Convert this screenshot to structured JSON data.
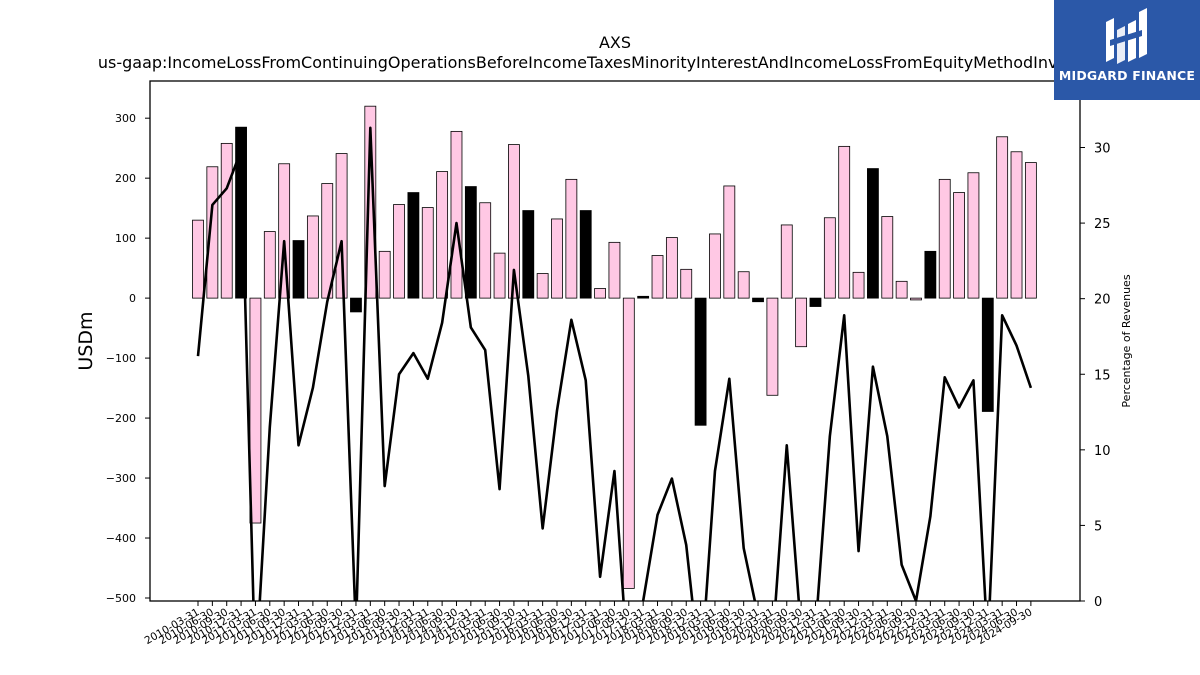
{
  "chart_data": {
    "type": "bar",
    "title": "AXS",
    "subtitle": "us-gaap:IncomeLossFromContinuingOperationsBeforeIncomeTaxesMinorityInterestAndIncomeLossFromEquityMethodInvestments",
    "ylabel": "USDm",
    "y2label": "Percentage of Revenues",
    "ylim": [
      -505,
      362
    ],
    "y2lim": [
      0,
      34.4
    ],
    "yticks": [
      -500,
      -400,
      -300,
      -200,
      -100,
      0,
      100,
      200,
      300
    ],
    "ytick_labels": [
      "−500",
      "−400",
      "−300",
      "−200",
      "−100",
      "0",
      "100",
      "200",
      "300"
    ],
    "y2ticks": [
      0,
      5,
      10,
      15,
      20,
      25,
      30
    ],
    "ytick2_labels": [
      "0",
      "5",
      "10",
      "15",
      "20",
      "25",
      "30"
    ],
    "colors": {
      "quarter": "#ffc8e4",
      "annual": "#000000",
      "edge": "#000000",
      "line": "#000000"
    },
    "categories": [
      "2010-03-31",
      "2010-06-30",
      "2010-09-30",
      "2010-12-31",
      "2011-03-31",
      "2011-06-30",
      "2011-09-30",
      "2011-12-31",
      "2012-03-31",
      "2012-06-30",
      "2012-09-30",
      "2012-12-31",
      "2013-03-31",
      "2013-06-30",
      "2013-09-30",
      "2013-12-31",
      "2014-03-31",
      "2014-06-30",
      "2014-09-30",
      "2014-12-31",
      "2015-03-31",
      "2015-06-30",
      "2015-09-30",
      "2015-12-31",
      "2016-03-31",
      "2016-06-30",
      "2016-09-30",
      "2016-12-31",
      "2017-03-31",
      "2017-06-30",
      "2017-09-30",
      "2017-12-31",
      "2018-03-31",
      "2018-06-30",
      "2018-09-30",
      "2018-12-31",
      "2019-03-31",
      "2019-06-30",
      "2019-09-30",
      "2019-12-31",
      "2020-03-31",
      "2020-06-30",
      "2020-09-30",
      "2020-12-31",
      "2021-03-31",
      "2021-06-30",
      "2021-09-30",
      "2021-12-31",
      "2022-03-31",
      "2022-06-30",
      "2022-09-30",
      "2022-12-31",
      "2023-03-31",
      "2023-06-30",
      "2023-09-30",
      "2023-12-31",
      "2024-03-31",
      "2024-06-30",
      "2024-09-30"
    ],
    "series": [
      {
        "type": "bar",
        "values": [
          130,
          219,
          258,
          285,
          -375,
          111,
          224,
          96,
          137,
          191,
          241,
          -23,
          320,
          78,
          156,
          176,
          151,
          211,
          278,
          186,
          159,
          75,
          256,
          146,
          41,
          132,
          198,
          146,
          16,
          93,
          -484,
          3,
          71,
          101,
          48,
          -212,
          107,
          187,
          44,
          -6,
          -162,
          122,
          -81,
          -14,
          134,
          253,
          43,
          216,
          136,
          28,
          -3,
          78,
          198,
          176,
          209,
          -189,
          269,
          244,
          226
        ],
        "annual": [
          false,
          false,
          false,
          true,
          false,
          false,
          false,
          true,
          false,
          false,
          false,
          true,
          false,
          false,
          false,
          true,
          false,
          false,
          false,
          true,
          false,
          false,
          false,
          true,
          false,
          false,
          false,
          true,
          false,
          false,
          false,
          true,
          false,
          false,
          false,
          true,
          false,
          false,
          false,
          true,
          false,
          false,
          false,
          true,
          false,
          false,
          false,
          true,
          false,
          false,
          false,
          true,
          false,
          false,
          false,
          true,
          false,
          false,
          false
        ]
      },
      {
        "type": "line",
        "axis": "right",
        "values": [
          16.2,
          26.2,
          27.3,
          29.8,
          -5,
          11.5,
          23.8,
          10.3,
          14.1,
          19.8,
          23.8,
          -2,
          31.3,
          7.6,
          15,
          16.4,
          14.7,
          18.4,
          25,
          18.1,
          16.6,
          7.4,
          21.9,
          14.9,
          4.8,
          12.6,
          18.6,
          14.6,
          1.6,
          8.6,
          -5,
          0,
          5.7,
          8.1,
          3.7,
          -5,
          8.6,
          14.7,
          3.5,
          -1,
          -3,
          10.3,
          -2,
          -2,
          10.9,
          18.9,
          3.3,
          15.5,
          10.9,
          2.4,
          0,
          5.6,
          14.8,
          12.8,
          14.6,
          -3,
          18.9,
          16.9,
          14.1
        ]
      }
    ]
  },
  "logo": {
    "text": "MIDGARD FINANCE"
  }
}
